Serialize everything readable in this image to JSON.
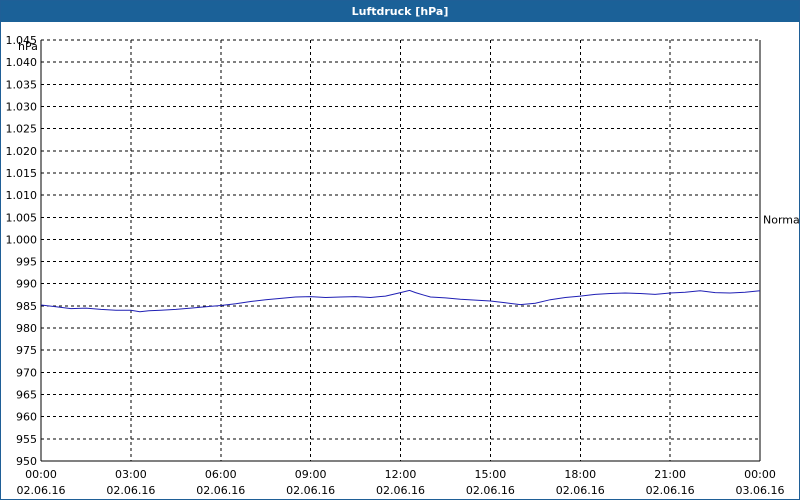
{
  "window": {
    "title": "Luftdruck [hPa]"
  },
  "colors": {
    "titlebar": "#1b6198",
    "series": "#1f1fb4",
    "grid": "#000000"
  },
  "chart_data": {
    "type": "line",
    "title": "Luftdruck [hPa]",
    "ylabel": "hPa",
    "ylim": [
      950,
      1045
    ],
    "yticks": [
      "950",
      "955",
      "960",
      "965",
      "970",
      "975",
      "980",
      "985",
      "990",
      "995",
      "1.000",
      "1.005",
      "1.010",
      "1.015",
      "1.020",
      "1.025",
      "1.030",
      "1.035",
      "1.040",
      "1.045"
    ],
    "yticks_values": [
      950,
      955,
      960,
      965,
      970,
      975,
      980,
      985,
      990,
      995,
      1000,
      1005,
      1010,
      1015,
      1020,
      1025,
      1030,
      1035,
      1040,
      1045
    ],
    "xlim_hours": [
      0,
      24
    ],
    "xticks": [
      {
        "time": "00:00",
        "date": "02.06.16"
      },
      {
        "time": "03:00",
        "date": "02.06.16"
      },
      {
        "time": "06:00",
        "date": "02.06.16"
      },
      {
        "time": "09:00",
        "date": "02.06.16"
      },
      {
        "time": "12:00",
        "date": "02.06.16"
      },
      {
        "time": "15:00",
        "date": "02.06.16"
      },
      {
        "time": "18:00",
        "date": "02.06.16"
      },
      {
        "time": "21:00",
        "date": "02.06.16"
      },
      {
        "time": "00:00",
        "date": "03.06.16"
      }
    ],
    "grid": true,
    "annotation": {
      "label": "Normal",
      "value": 1004.5
    },
    "series": [
      {
        "x": [
          0,
          0.5,
          1,
          1.5,
          2,
          2.5,
          3,
          3.3,
          3.6,
          4,
          4.5,
          5,
          5.5,
          6,
          6.5,
          7,
          7.5,
          8,
          8.5,
          9,
          9.5,
          10,
          10.5,
          11,
          11.5,
          12,
          12.3,
          12.5,
          12.8,
          13,
          13.5,
          14,
          14.5,
          15,
          15.5,
          16,
          16.5,
          17,
          17.5,
          18,
          18.5,
          19,
          19.5,
          20,
          20.5,
          21,
          21.5,
          22,
          22.5,
          23,
          23.5,
          24
        ],
        "y": [
          985.2,
          984.8,
          984.4,
          984.5,
          984.2,
          984.0,
          984.0,
          983.7,
          983.9,
          984.0,
          984.2,
          984.5,
          984.8,
          985.1,
          985.5,
          986.0,
          986.4,
          986.7,
          987.0,
          987.1,
          986.9,
          987.0,
          987.1,
          986.9,
          987.2,
          988.0,
          988.5,
          988.0,
          987.4,
          987.0,
          986.8,
          986.5,
          986.3,
          986.1,
          985.7,
          985.3,
          985.6,
          986.4,
          986.9,
          987.2,
          987.6,
          987.8,
          987.9,
          987.8,
          987.6,
          987.9,
          988.1,
          988.4,
          988.0,
          987.9,
          988.1,
          988.4
        ]
      }
    ]
  }
}
